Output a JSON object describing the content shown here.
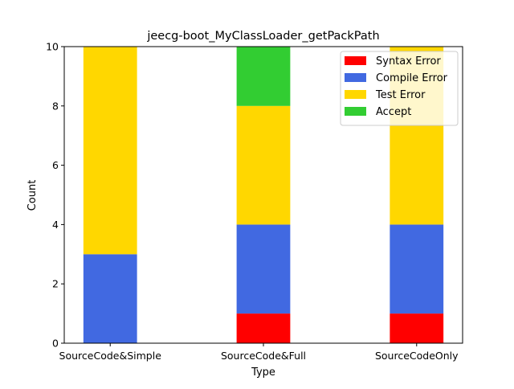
{
  "chart_data": {
    "type": "bar",
    "stacked": true,
    "title": "jeecg-boot_MyClassLoader_getPackPath",
    "xlabel": "Type",
    "ylabel": "Count",
    "categories": [
      "SourceCode&Simple",
      "SourceCode&Full",
      "SourceCodeOnly"
    ],
    "ylim": [
      0,
      10
    ],
    "yticks": [
      "0",
      "2",
      "4",
      "6",
      "8",
      "10"
    ],
    "legend_position": "top-right",
    "grid": false,
    "series": [
      {
        "name": "Syntax Error",
        "color": "#ff0000",
        "values": [
          0,
          1,
          1
        ]
      },
      {
        "name": "Compile Error",
        "color": "#4169e1",
        "values": [
          3,
          3,
          3
        ]
      },
      {
        "name": "Test Error",
        "color": "#ffd700",
        "values": [
          7,
          4,
          6
        ]
      },
      {
        "name": "Accept",
        "color": "#32cd32",
        "values": [
          0,
          2,
          0
        ]
      }
    ]
  }
}
